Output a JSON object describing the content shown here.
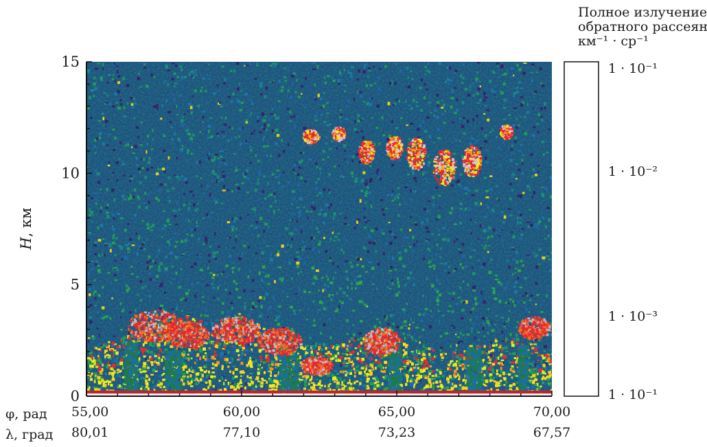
{
  "chart_data": {
    "type": "heatmap",
    "y_axis": {
      "label_symbol": "H",
      "label_unit": ", км",
      "range": [
        0,
        15
      ],
      "ticks": [
        "0",
        "5",
        "10",
        "15"
      ]
    },
    "x_axis": {
      "rows": [
        {
          "label": "φ, рад",
          "ticks": [
            "55,00",
            "60,00",
            "65,00",
            "70,00"
          ]
        },
        {
          "label": "λ, град",
          "ticks": [
            "80,01",
            "77,10",
            "73,23",
            "67,57"
          ]
        }
      ],
      "range": [
        55,
        70
      ]
    },
    "colorbar": {
      "title_lines": [
        "Полное излучение",
        "обратного рассеяния,",
        "км⁻¹ · ср⁻¹"
      ],
      "labels": [
        "1 · 10⁻¹",
        "1 · 10⁻²",
        "1 · 10⁻³",
        "1 · 10⁻¹"
      ],
      "colors": [
        "#3b1f6e",
        "#3b1f6e",
        "#1a6ea8",
        "#1a6ea8",
        "#1a6ea8",
        "#1a6ea8",
        "#1a6ea8",
        "#1a6ea8",
        "#12916a",
        "#1c7a6e",
        "#1a9440",
        "#f0ec1a",
        "#f5d61a",
        "#f7b21e",
        "#f6961f",
        "#f27822",
        "#f04a26",
        "#ea2a2e",
        "#ec1f55",
        "#ee5a90",
        "#5e4b3e",
        "#70604f",
        "#85776a",
        "#968a7f",
        "#aaa098",
        "#bdb7b1",
        "#d2cec9",
        "#e4e1dd",
        "#efece9",
        "#f6f4f2",
        "#fbfaf8",
        "#ffffff",
        "#ffffff",
        "#ffffff"
      ]
    },
    "layers": [
      {
        "desc": "boundary layer",
        "x_range": [
          55,
          70
        ],
        "h_range": [
          0.2,
          3.5
        ],
        "intensity": "high"
      },
      {
        "desc": "cirrus",
        "x_range": [
          63,
          68.5
        ],
        "h_range": [
          9.5,
          12.5
        ],
        "intensity": "high"
      }
    ]
  }
}
